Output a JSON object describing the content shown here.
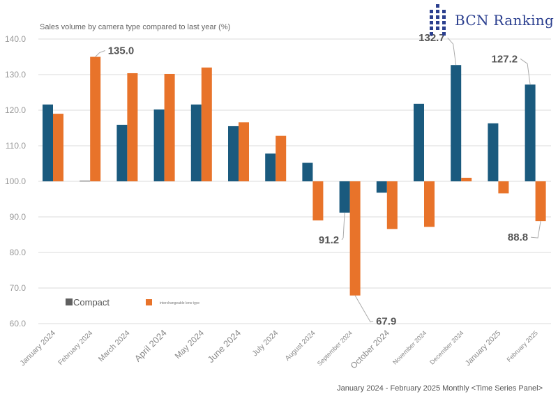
{
  "logo": {
    "text": "BCN Ranking",
    "color": "#2b3f8f"
  },
  "footer": "January 2024 - February 2025 Monthly <Time Series Panel>",
  "chart_data": {
    "type": "bar",
    "title": "Sales volume by camera type compared to last year (%)",
    "xlabel": "",
    "ylabel": "",
    "ylim": [
      60,
      140
    ],
    "baseline": 100,
    "yticks": [
      "60.0",
      "70.0",
      "80.0",
      "90.0",
      "100.0",
      "110.0",
      "120.0",
      "130.0",
      "140.0"
    ],
    "grid": true,
    "legend": "bottom-left inside plot",
    "categories": [
      "January 2024",
      "February 2024",
      "March 2024",
      "April 2024",
      "May 2024",
      "June 2024",
      "July 2024",
      "August 2024",
      "September 2024",
      "October 2024",
      "November 2024",
      "December 2024",
      "January 2025",
      "February 2025"
    ],
    "series": [
      {
        "name": "Compact",
        "color": "#1a5a7e",
        "values": [
          121.6,
          100.2,
          115.9,
          120.2,
          121.6,
          115.5,
          107.8,
          105.2,
          91.2,
          96.8,
          121.8,
          132.7,
          116.3,
          127.2
        ]
      },
      {
        "name": "interchangeable lens type",
        "color": "#e8732a",
        "values": [
          119.0,
          135.0,
          130.4,
          130.2,
          132.0,
          116.6,
          112.8,
          89.0,
          67.9,
          86.6,
          87.2,
          101.0,
          96.6,
          88.8
        ]
      }
    ],
    "annotations": [
      {
        "series": 1,
        "index": 1,
        "text": "135.0"
      },
      {
        "series": 0,
        "index": 8,
        "text": "91.2"
      },
      {
        "series": 1,
        "index": 8,
        "text": "67.9"
      },
      {
        "series": 0,
        "index": 11,
        "text": "132.7"
      },
      {
        "series": 0,
        "index": 13,
        "text": "127.2"
      },
      {
        "series": 1,
        "index": 13,
        "text": "88.8"
      }
    ],
    "legend_labels": {
      "compact": "Compact",
      "interchangeable": "interchangeable lens type"
    }
  }
}
